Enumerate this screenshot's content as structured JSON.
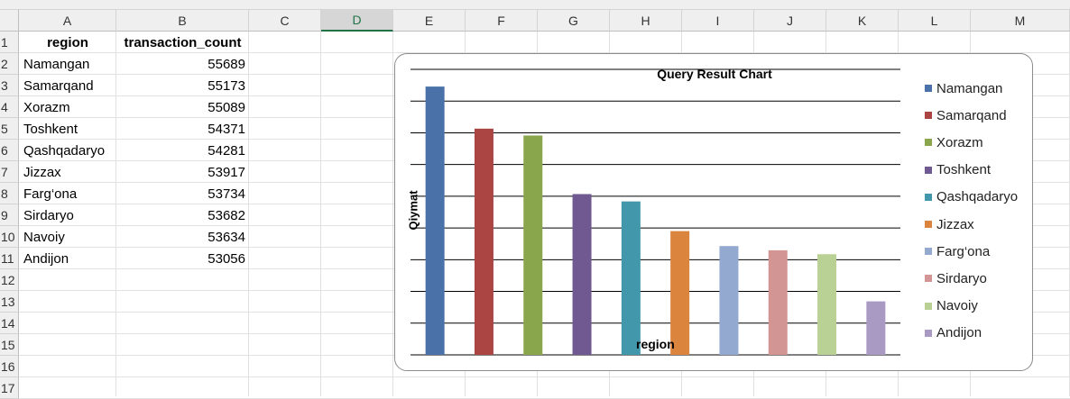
{
  "columns": [
    "A",
    "B",
    "C",
    "D",
    "E",
    "F",
    "G",
    "H",
    "I",
    "J",
    "K",
    "L",
    "M"
  ],
  "selected_column": "D",
  "rows": [
    "1",
    "2",
    "3",
    "4",
    "5",
    "6",
    "7",
    "8",
    "9",
    "10",
    "11",
    "12",
    "13",
    "14",
    "15",
    "16",
    "17"
  ],
  "table": {
    "headers": [
      "region",
      "transaction_count"
    ],
    "data": [
      {
        "region": "Namangan",
        "count": "55689"
      },
      {
        "region": "Samarqand",
        "count": "55173"
      },
      {
        "region": "Xorazm",
        "count": "55089"
      },
      {
        "region": "Toshkent",
        "count": "54371"
      },
      {
        "region": "Qashqadaryo",
        "count": "54281"
      },
      {
        "region": "Jizzax",
        "count": "53917"
      },
      {
        "region": "Farg‘ona",
        "count": "53734"
      },
      {
        "region": "Sirdaryo",
        "count": "53682"
      },
      {
        "region": "Navoiy",
        "count": "53634"
      },
      {
        "region": "Andijon",
        "count": "53056"
      }
    ]
  },
  "chart_data": {
    "type": "bar",
    "title": "Query Result Chart",
    "xlabel": "region",
    "ylabel": "Qiymat",
    "categories": [
      "Namangan",
      "Samarqand",
      "Xorazm",
      "Toshkent",
      "Qashqadaryo",
      "Jizzax",
      "Farg‘ona",
      "Sirdaryo",
      "Navoiy",
      "Andijon"
    ],
    "values": [
      55689,
      55173,
      55089,
      54371,
      54281,
      53917,
      53734,
      53682,
      53634,
      53056
    ],
    "colors": [
      "#4a72a8",
      "#ab4543",
      "#8aa64d",
      "#705990",
      "#4397ab",
      "#db843d",
      "#94a9d0",
      "#d29593",
      "#b9d195",
      "#a99ac3"
    ],
    "ylim": [
      52400,
      55900
    ],
    "grid": true,
    "legend": "right"
  }
}
